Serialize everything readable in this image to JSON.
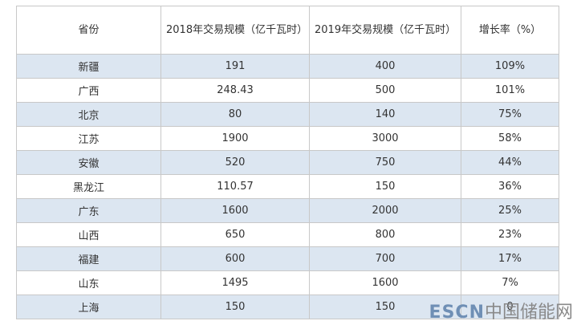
{
  "table": {
    "header": [
      "省份",
      "2018年交易规模（亿千瓦时）",
      "2019年交易规模（亿千瓦时）",
      "增长率（%）"
    ],
    "rows": [
      [
        "新疆",
        "191",
        "400",
        "109%"
      ],
      [
        "广西",
        "248.43",
        "500",
        "101%"
      ],
      [
        "北京",
        "80",
        "140",
        "75%"
      ],
      [
        "江苏",
        "1900",
        "3000",
        "58%"
      ],
      [
        "安徽",
        "520",
        "750",
        "44%"
      ],
      [
        "黑龙江",
        "110.57",
        "150",
        "36%"
      ],
      [
        "广东",
        "1600",
        "2000",
        "25%"
      ],
      [
        "山西",
        "650",
        "800",
        "23%"
      ],
      [
        "福建",
        "600",
        "700",
        "17%"
      ],
      [
        "山东",
        "1495",
        "1600",
        "7%"
      ],
      [
        "上海",
        "150",
        "150",
        "0"
      ]
    ]
  },
  "watermark": {
    "brand": "ESCN",
    "site": "中国储能网"
  }
}
